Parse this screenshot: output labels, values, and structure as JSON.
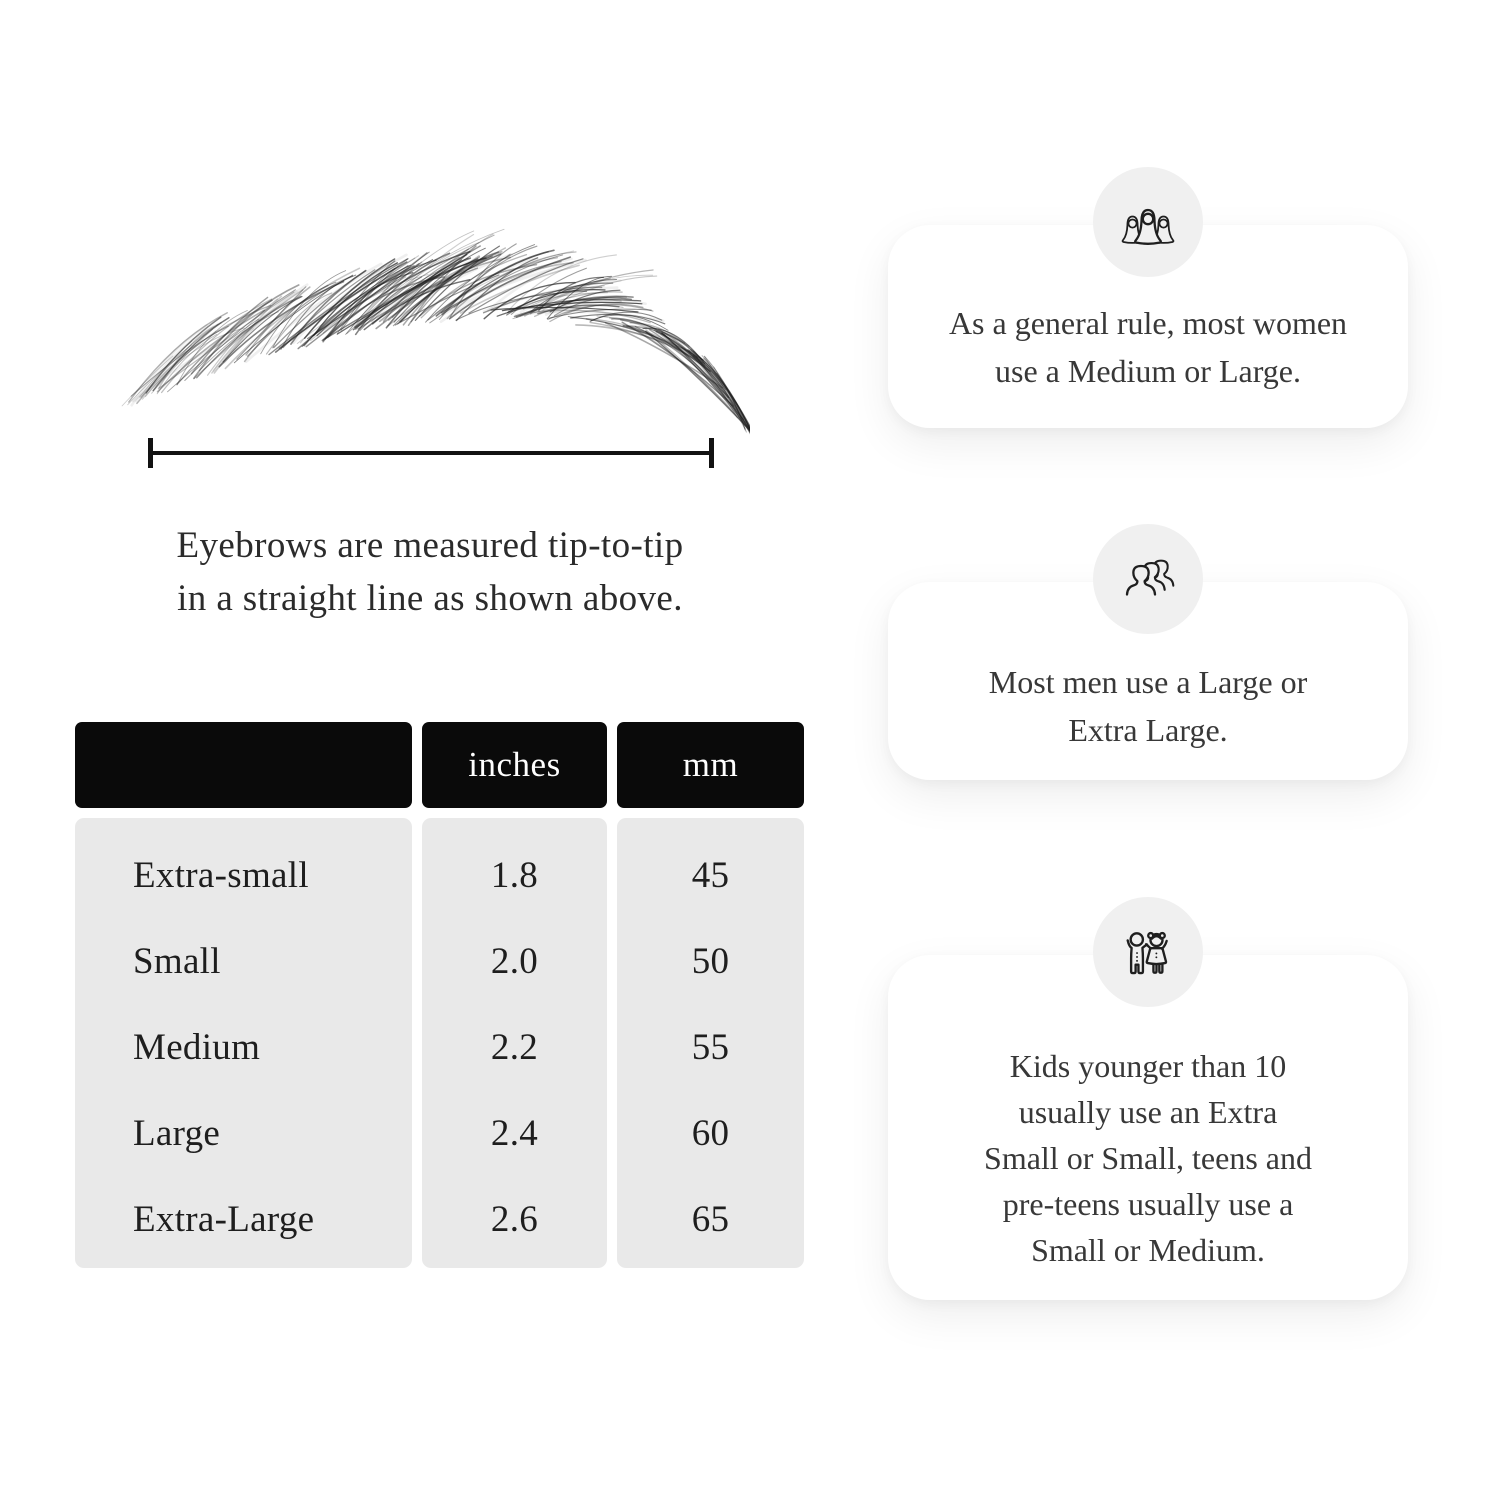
{
  "figure": {
    "caption_lines": [
      "Eyebrows are measured tip-to-tip",
      "in a straight line as shown above."
    ]
  },
  "size_table": {
    "columns": [
      "",
      "inches",
      "mm"
    ],
    "rows": [
      [
        "Extra-small",
        "1.8",
        "45"
      ],
      [
        "Small",
        "2.0",
        "50"
      ],
      [
        "Medium",
        "2.2",
        "55"
      ],
      [
        "Large",
        "2.4",
        "60"
      ],
      [
        "Extra-Large",
        "2.6",
        "65"
      ]
    ]
  },
  "cards": [
    {
      "icon": "women-group-icon",
      "lines": [
        "As a general rule, most women",
        "use a Medium or Large."
      ]
    },
    {
      "icon": "men-group-icon",
      "lines": [
        "Most men use a Large or",
        "Extra Large."
      ]
    },
    {
      "icon": "kids-icon",
      "lines": [
        "Kids younger than 10",
        "usually use an Extra",
        "Small or Small, teens and",
        "pre-teens usually use a",
        "Small or Medium."
      ]
    }
  ],
  "colors": {
    "background": "#ffffff",
    "text": "#2c2c2c",
    "table_header_bg": "#0a0a0a",
    "table_header_text": "#ffffff",
    "table_body_bg": "#e9e9e9",
    "icon_circle_bg": "#f0f0f0",
    "icon_stroke": "#1f1f1f",
    "measure_line": "#121212"
  }
}
